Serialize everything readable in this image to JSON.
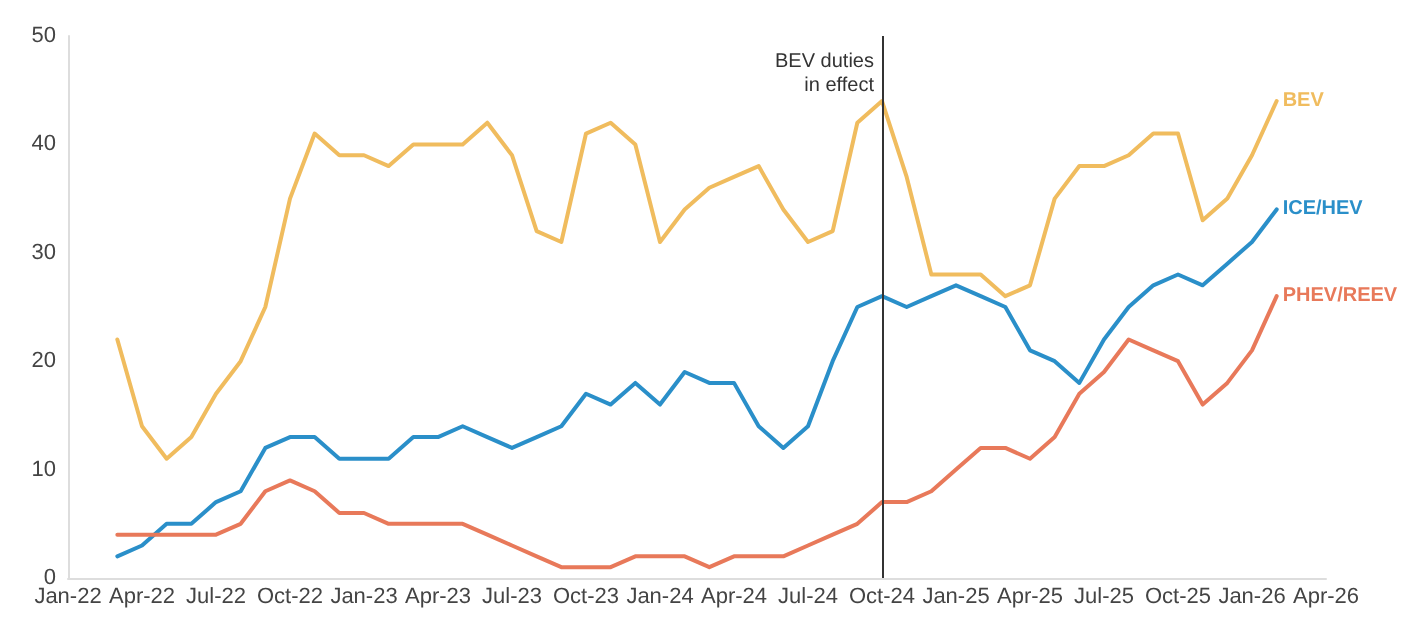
{
  "chart_data": {
    "type": "line",
    "categories": [
      "Jan-22",
      null,
      null,
      "Apr-22",
      null,
      null,
      "Jul-22",
      null,
      null,
      "Oct-22",
      null,
      null,
      "Jan-23",
      null,
      null,
      "Apr-23",
      null,
      null,
      "Jul-23",
      null,
      null,
      "Oct-23",
      null,
      null,
      "Jan-24",
      null,
      null,
      "Apr-24",
      null,
      null,
      "Jul-24",
      null,
      null,
      "Oct-24",
      null,
      null,
      "Jan-25",
      null,
      null,
      "Apr-25",
      null,
      null,
      "Jul-25",
      null,
      null,
      "Oct-25",
      null,
      null,
      "Jan-26",
      null,
      null,
      "Apr-26"
    ],
    "series": [
      {
        "name": "BEV",
        "color": "#f0bc5e",
        "values": [
          null,
          null,
          22,
          14,
          11,
          13,
          17,
          20,
          25,
          35,
          41,
          39,
          39,
          38,
          40,
          40,
          40,
          42,
          39,
          32,
          31,
          41,
          42,
          40,
          31,
          34,
          36,
          37,
          38,
          34,
          31,
          32,
          42,
          44,
          37,
          28,
          28,
          28,
          26,
          27,
          35,
          38,
          38,
          39,
          41,
          41,
          33,
          35,
          39,
          44,
          null,
          null
        ]
      },
      {
        "name": "ICE/HEV",
        "color": "#2a8fc9",
        "values": [
          null,
          null,
          2,
          3,
          5,
          5,
          7,
          8,
          12,
          13,
          13,
          11,
          11,
          11,
          13,
          13,
          14,
          13,
          12,
          13,
          14,
          17,
          16,
          18,
          16,
          19,
          18,
          18,
          14,
          12,
          14,
          20,
          25,
          26,
          25,
          26,
          27,
          26,
          25,
          21,
          20,
          18,
          22,
          25,
          27,
          28,
          27,
          29,
          31,
          34,
          null,
          null
        ]
      },
      {
        "name": "PHEV/REEV",
        "color": "#e8795a",
        "values": [
          null,
          null,
          4,
          4,
          4,
          4,
          4,
          5,
          8,
          9,
          8,
          6,
          6,
          5,
          5,
          5,
          5,
          4,
          3,
          2,
          1,
          1,
          1,
          2,
          2,
          2,
          1,
          2,
          2,
          2,
          3,
          4,
          5,
          7,
          7,
          8,
          10,
          12,
          12,
          11,
          13,
          17,
          19,
          22,
          21,
          20,
          16,
          18,
          21,
          26,
          null,
          null
        ]
      }
    ],
    "ylim": [
      0,
      50
    ],
    "yticks": [
      0,
      10,
      20,
      30,
      40,
      50
    ],
    "grid": false,
    "legend": false,
    "marker": "none",
    "line_style": "solid",
    "ref_lines": [
      {
        "axis": "x",
        "value": "Oct-24",
        "label": "BEV duties\nin effect",
        "color": "#333333",
        "line_style": "solid"
      }
    ]
  }
}
